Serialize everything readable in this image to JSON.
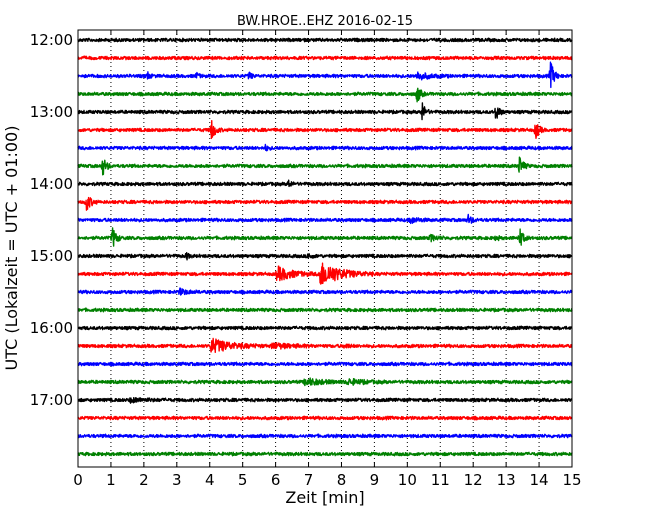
{
  "chart_data": {
    "type": "line",
    "title": "BW.HROE..EHZ 2016-02-15",
    "xlabel": "Zeit  [min]",
    "ylabel": "UTC (Lokalzeit = UTC + 01:00)",
    "xlim": [
      0,
      15
    ],
    "x_ticks": [
      "0",
      "1",
      "2",
      "3",
      "4",
      "5",
      "6",
      "7",
      "8",
      "9",
      "10",
      "11",
      "12",
      "13",
      "14",
      "15"
    ],
    "y_ticks": [
      "12:00",
      "13:00",
      "14:00",
      "15:00",
      "16:00",
      "17:00"
    ],
    "grid": "vertical dotted",
    "color_cycle": [
      "#000000",
      "#ff0000",
      "#0000ff",
      "#008000"
    ],
    "series": [
      {
        "start": "12:00",
        "color": "#000000",
        "events": []
      },
      {
        "start": "12:15",
        "color": "#ff0000",
        "events": []
      },
      {
        "start": "12:30",
        "color": "#0000ff",
        "events": [
          {
            "t": 2.1,
            "amp": 0.4,
            "dur": 0.2
          },
          {
            "t": 3.6,
            "amp": 0.3,
            "dur": 0.2
          },
          {
            "t": 5.2,
            "amp": 0.4,
            "dur": 0.2
          },
          {
            "t": 10.3,
            "amp": 0.4,
            "dur": 1.0
          },
          {
            "t": 14.35,
            "amp": 1.5,
            "dur": 0.3
          }
        ]
      },
      {
        "start": "12:45",
        "color": "#008000",
        "events": [
          {
            "t": 10.3,
            "amp": 1.0,
            "dur": 0.25
          }
        ]
      },
      {
        "start": "13:00",
        "color": "#000000",
        "events": [
          {
            "t": 10.45,
            "amp": 1.0,
            "dur": 0.25
          },
          {
            "t": 12.7,
            "amp": 1.0,
            "dur": 0.25
          }
        ]
      },
      {
        "start": "13:15",
        "color": "#ff0000",
        "events": [
          {
            "t": 4.05,
            "amp": 1.1,
            "dur": 0.3
          },
          {
            "t": 13.9,
            "amp": 0.9,
            "dur": 0.3
          }
        ]
      },
      {
        "start": "13:30",
        "color": "#0000ff",
        "events": [
          {
            "t": 5.7,
            "amp": 0.3,
            "dur": 0.2
          }
        ]
      },
      {
        "start": "13:45",
        "color": "#008000",
        "events": [
          {
            "t": 0.75,
            "amp": 1.0,
            "dur": 0.3
          },
          {
            "t": 13.4,
            "amp": 1.0,
            "dur": 0.3
          }
        ]
      },
      {
        "start": "14:00",
        "color": "#000000",
        "events": [
          {
            "t": 6.4,
            "amp": 0.4,
            "dur": 0.2
          }
        ]
      },
      {
        "start": "14:15",
        "color": "#ff0000",
        "events": [
          {
            "t": 0.25,
            "amp": 1.0,
            "dur": 0.35
          }
        ]
      },
      {
        "start": "14:30",
        "color": "#0000ff",
        "events": [
          {
            "t": 10.1,
            "amp": 0.3,
            "dur": 0.6
          },
          {
            "t": 11.85,
            "amp": 0.5,
            "dur": 0.3
          }
        ]
      },
      {
        "start": "14:45",
        "color": "#008000",
        "events": [
          {
            "t": 1.05,
            "amp": 1.1,
            "dur": 0.3
          },
          {
            "t": 10.7,
            "amp": 0.3,
            "dur": 0.5
          },
          {
            "t": 12.7,
            "amp": 0.3,
            "dur": 0.2
          },
          {
            "t": 13.4,
            "amp": 1.1,
            "dur": 0.3
          }
        ]
      },
      {
        "start": "15:00",
        "color": "#000000",
        "events": [
          {
            "t": 3.3,
            "amp": 0.3,
            "dur": 0.2
          },
          {
            "t": 7.0,
            "amp": 0.3,
            "dur": 0.3
          }
        ]
      },
      {
        "start": "15:15",
        "color": "#ff0000",
        "events": [
          {
            "t": 6.05,
            "amp": 0.8,
            "dur": 1.2
          },
          {
            "t": 7.35,
            "amp": 1.4,
            "dur": 1.6
          }
        ]
      },
      {
        "start": "15:30",
        "color": "#0000ff",
        "events": [
          {
            "t": 3.1,
            "amp": 0.3,
            "dur": 0.6
          }
        ]
      },
      {
        "start": "15:45",
        "color": "#008000",
        "events": []
      },
      {
        "start": "16:00",
        "color": "#000000",
        "events": []
      },
      {
        "start": "16:15",
        "color": "#ff0000",
        "events": [
          {
            "t": 4.05,
            "amp": 0.8,
            "dur": 1.6
          },
          {
            "t": 5.9,
            "amp": 0.3,
            "dur": 1.4
          },
          {
            "t": 8.1,
            "amp": 0.25,
            "dur": 0.3
          }
        ]
      },
      {
        "start": "16:30",
        "color": "#0000ff",
        "events": []
      },
      {
        "start": "16:45",
        "color": "#008000",
        "events": [
          {
            "t": 6.9,
            "amp": 0.4,
            "dur": 1.3
          },
          {
            "t": 8.2,
            "amp": 0.3,
            "dur": 1.2
          }
        ]
      },
      {
        "start": "17:00",
        "color": "#000000",
        "events": [
          {
            "t": 1.6,
            "amp": 0.2,
            "dur": 1.2
          }
        ]
      },
      {
        "start": "17:15",
        "color": "#ff0000",
        "events": []
      },
      {
        "start": "17:30",
        "color": "#0000ff",
        "events": []
      },
      {
        "start": "17:45",
        "color": "#008000",
        "events": []
      }
    ]
  }
}
